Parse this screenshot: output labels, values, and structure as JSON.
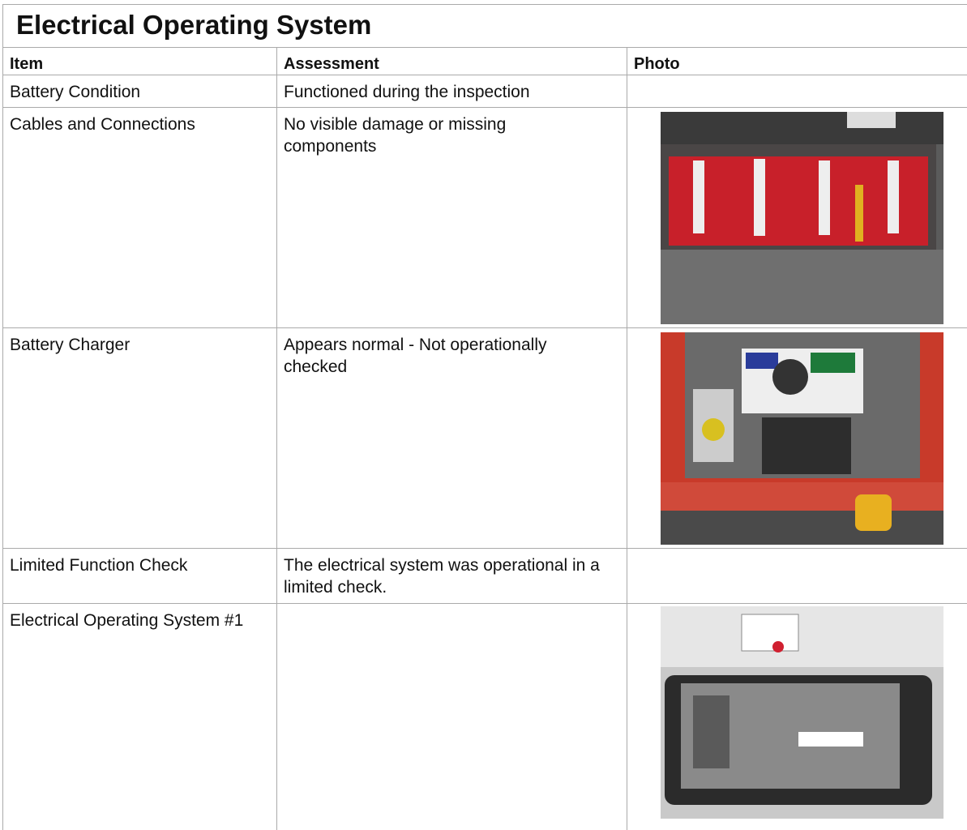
{
  "header": {
    "title": "Electrical Operating System"
  },
  "table": {
    "columns": [
      "Item",
      "Assessment",
      "Photo"
    ],
    "rows": [
      {
        "item": "Battery Condition",
        "assessment": "Functioned during the inspection"
      },
      {
        "item": "Cables and Connections",
        "assessment": "No visible damage or missing components"
      },
      {
        "item": "Battery Charger",
        "assessment": "Appears normal - Not operationally checked"
      },
      {
        "item": "Limited Function Check",
        "assessment": "The electrical system was operational in a limited check."
      },
      {
        "item": "Electrical Operating System #1"
      }
    ]
  }
}
